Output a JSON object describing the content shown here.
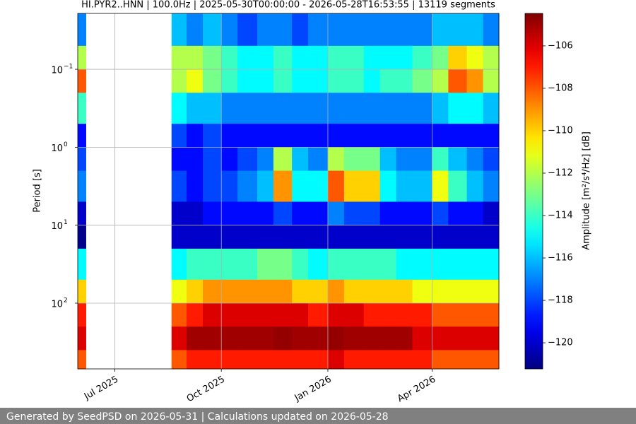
{
  "chart_data": {
    "type": "heatmap",
    "title": "HI.PYR2..HNN | 100.0Hz | 2025-05-30T00:00:00 - 2026-05-28T16:53:55 | 13119 segments",
    "y_label": "Period [s]",
    "y_scale": "log",
    "y_inverted": true,
    "xlim": [
      "2025-05-30T00:00:00",
      "2026-05-28T16:53:55"
    ],
    "ylim": [
      0.0192,
      697
    ],
    "xticks": [
      {
        "value": "2025-07-01",
        "label": "Jul 2025"
      },
      {
        "value": "2025-10-01",
        "label": "Oct 2025"
      },
      {
        "value": "2026-01-01",
        "label": "Jan 2026"
      },
      {
        "value": "2026-04-01",
        "label": "Apr 2026"
      }
    ],
    "yticks": [
      {
        "value": 0.1,
        "label": "10",
        "exponent": "−1"
      },
      {
        "value": 1,
        "label": "10",
        "exponent": "0"
      },
      {
        "value": 10,
        "label": "10",
        "exponent": "1"
      },
      {
        "value": 100,
        "label": "10",
        "exponent": "2"
      }
    ],
    "grid": true,
    "x_edges": [
      "2025-05-30T00:00:00",
      "2025-06-06",
      "2025-08-19",
      "2025-09-01",
      "2025-09-15",
      "2025-10-01",
      "2025-10-15",
      "2025-11-01",
      "2025-11-15",
      "2025-12-01",
      "2025-12-15",
      "2026-01-01",
      "2026-01-15",
      "2026-02-01",
      "2026-02-15",
      "2026-03-01",
      "2026-03-15",
      "2026-04-01",
      "2026-04-15",
      "2026-05-01",
      "2026-05-15",
      "2026-05-28T16:53:55"
    ],
    "y_edges": [
      0.0192,
      0.05,
      0.1,
      0.2,
      0.5,
      1,
      2,
      5,
      10,
      20,
      50,
      100,
      200,
      400,
      697
    ],
    "values": [
      [
        -117,
        -112,
        -108,
        -114,
        -119,
        -118,
        -117,
        -120,
        -121,
        -115,
        -110,
        -107,
        -106,
        -108
      ],
      [
        null,
        null,
        null,
        null,
        null,
        null,
        null,
        null,
        null,
        null,
        null,
        null,
        null,
        null
      ],
      [
        -116,
        -112,
        -112,
        -115,
        -118,
        -119,
        -118,
        -120,
        -120,
        -115,
        -111,
        -108,
        -106,
        -108
      ],
      [
        -117,
        -112,
        -111,
        -116,
        -119,
        -119,
        -119,
        -120,
        -120,
        -114,
        -110,
        -107,
        -105,
        -107
      ],
      [
        -116,
        -113,
        -113,
        -116,
        -118,
        -118,
        -118,
        -119,
        -120,
        -114,
        -109,
        -106,
        -105,
        -107
      ],
      [
        -117,
        -114,
        -114,
        -117,
        -119,
        -119,
        -118,
        -119,
        -120,
        -114,
        -109,
        -106,
        -105,
        -107
      ],
      [
        -118,
        -115,
        -115,
        -117,
        -119,
        -118,
        -117,
        -119,
        -120,
        -114,
        -109,
        -106,
        -105,
        -107
      ],
      [
        -117,
        -115,
        -115,
        -117,
        -119,
        -117,
        -116,
        -119,
        -120,
        -113,
        -109,
        -106,
        -105,
        -107
      ],
      [
        -117,
        -114,
        -114,
        -117,
        -119,
        -112,
        -109,
        -118,
        -120,
        -113,
        -109,
        -106,
        -104.8,
        -107
      ],
      [
        -118,
        -115,
        -115,
        -117,
        -119,
        -116,
        -115,
        -119,
        -120,
        -114,
        -110,
        -106,
        -105,
        -107
      ],
      [
        -117,
        -115,
        -115,
        -117,
        -119,
        -117,
        -115,
        -119,
        -120,
        -115,
        -110,
        -107,
        -105,
        -107
      ],
      [
        -117,
        -114,
        -114,
        -117,
        -119,
        -112,
        -108,
        -117,
        -120,
        -114,
        -109,
        -106,
        -104.8,
        -106
      ],
      [
        -117,
        -114,
        -114,
        -117,
        -119,
        -113,
        -110,
        -118,
        -120,
        -114,
        -110,
        -106,
        -105,
        -107
      ],
      [
        -117,
        -115,
        -115,
        -117,
        -119,
        -113,
        -110,
        -118,
        -120,
        -114,
        -110,
        -107,
        -105,
        -107
      ],
      [
        -117,
        -115,
        -114,
        -117,
        -119,
        -116,
        -115,
        -119,
        -120,
        -114,
        -110,
        -107,
        -105,
        -107
      ],
      [
        -117,
        -115,
        -114,
        -117,
        -119,
        -117,
        -116,
        -119,
        -120,
        -115,
        -110,
        -107,
        -105,
        -107
      ],
      [
        -117,
        -114,
        -113,
        -117,
        -119,
        -117,
        -116,
        -119,
        -120,
        -115,
        -111,
        -107,
        -106,
        -107
      ],
      [
        -116,
        -113,
        -112,
        -116,
        -119,
        -114,
        -111,
        -118,
        -120,
        -115,
        -111,
        -108,
        -106,
        -108
      ],
      [
        -116,
        -110,
        -108,
        -115,
        -119,
        -116,
        -114,
        -119,
        -120,
        -115,
        -111,
        -108,
        -106,
        -108
      ],
      [
        -116,
        -111,
        -109,
        -115,
        -119,
        -117,
        -116,
        -119,
        -120,
        -115,
        -111,
        -108,
        -106,
        -108
      ],
      [
        -117,
        -112,
        -112,
        -116,
        -119,
        -118,
        -117,
        -120,
        -120,
        -115,
        -111,
        -108,
        -106,
        -108
      ]
    ],
    "colormap": "jet",
    "colorbar": {
      "label": "Amplitude [m²/s⁴/Hz] [dB]",
      "lim": [
        -121.23,
        -104.47
      ],
      "ticks": [
        {
          "value": -106,
          "label": "−106"
        },
        {
          "value": -108,
          "label": "−108"
        },
        {
          "value": -110,
          "label": "−110"
        },
        {
          "value": -112,
          "label": "−112"
        },
        {
          "value": -114,
          "label": "−114"
        },
        {
          "value": -116,
          "label": "−116"
        },
        {
          "value": -118,
          "label": "−118"
        },
        {
          "value": -120,
          "label": "−120"
        }
      ]
    }
  },
  "footer": "Generated by SeedPSD on 2026-05-31 | Calculations updated on 2026-05-28"
}
